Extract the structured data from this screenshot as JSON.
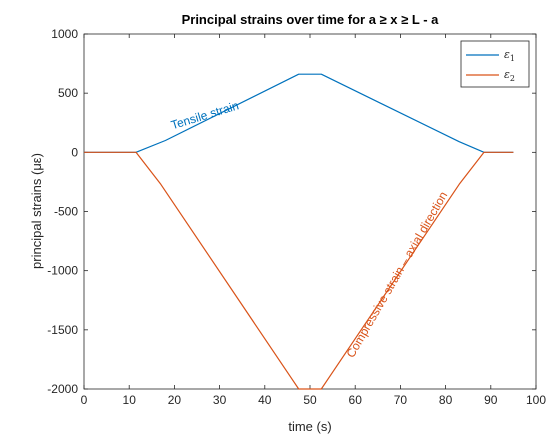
{
  "chart_data": {
    "type": "line",
    "title": "Principal strains over time for a ≥ x ≥ L - a",
    "xlabel": "time (s)",
    "ylabel": "principal strains (με)",
    "xlim": [
      0,
      100
    ],
    "ylim": [
      -2000,
      1000
    ],
    "xticks": [
      "0",
      "10",
      "20",
      "30",
      "40",
      "50",
      "60",
      "70",
      "80",
      "90",
      "100"
    ],
    "yticks": [
      "1000",
      "500",
      "0",
      "-500",
      "-1000",
      "-1500",
      "-2000"
    ],
    "grid": false,
    "legend_position": "top-right",
    "series": [
      {
        "name": "ε₁",
        "label_main": "ε",
        "label_sub": "1",
        "color": "#0072BD",
        "x": [
          0,
          11.5,
          18,
          47.5,
          52.5,
          83,
          88.5,
          95
        ],
        "y": [
          0,
          0,
          100,
          660,
          660,
          90,
          0,
          0
        ]
      },
      {
        "name": "ε₂",
        "label_main": "ε",
        "label_sub": "2",
        "color": "#D95319",
        "x": [
          0,
          11.5,
          17,
          47.5,
          52.5,
          83,
          88.5,
          95
        ],
        "y": [
          0,
          0,
          -270,
          -2000,
          -2000,
          -270,
          0,
          0
        ]
      }
    ],
    "annotations": [
      {
        "text": "Tensile strain",
        "x": 27,
        "y": 280,
        "color": "#0072BD",
        "rotation": -17
      },
      {
        "text": "Compressive strain – axial direction",
        "x": 70,
        "y": -1050,
        "color": "#D95319",
        "rotation": -60
      }
    ]
  }
}
